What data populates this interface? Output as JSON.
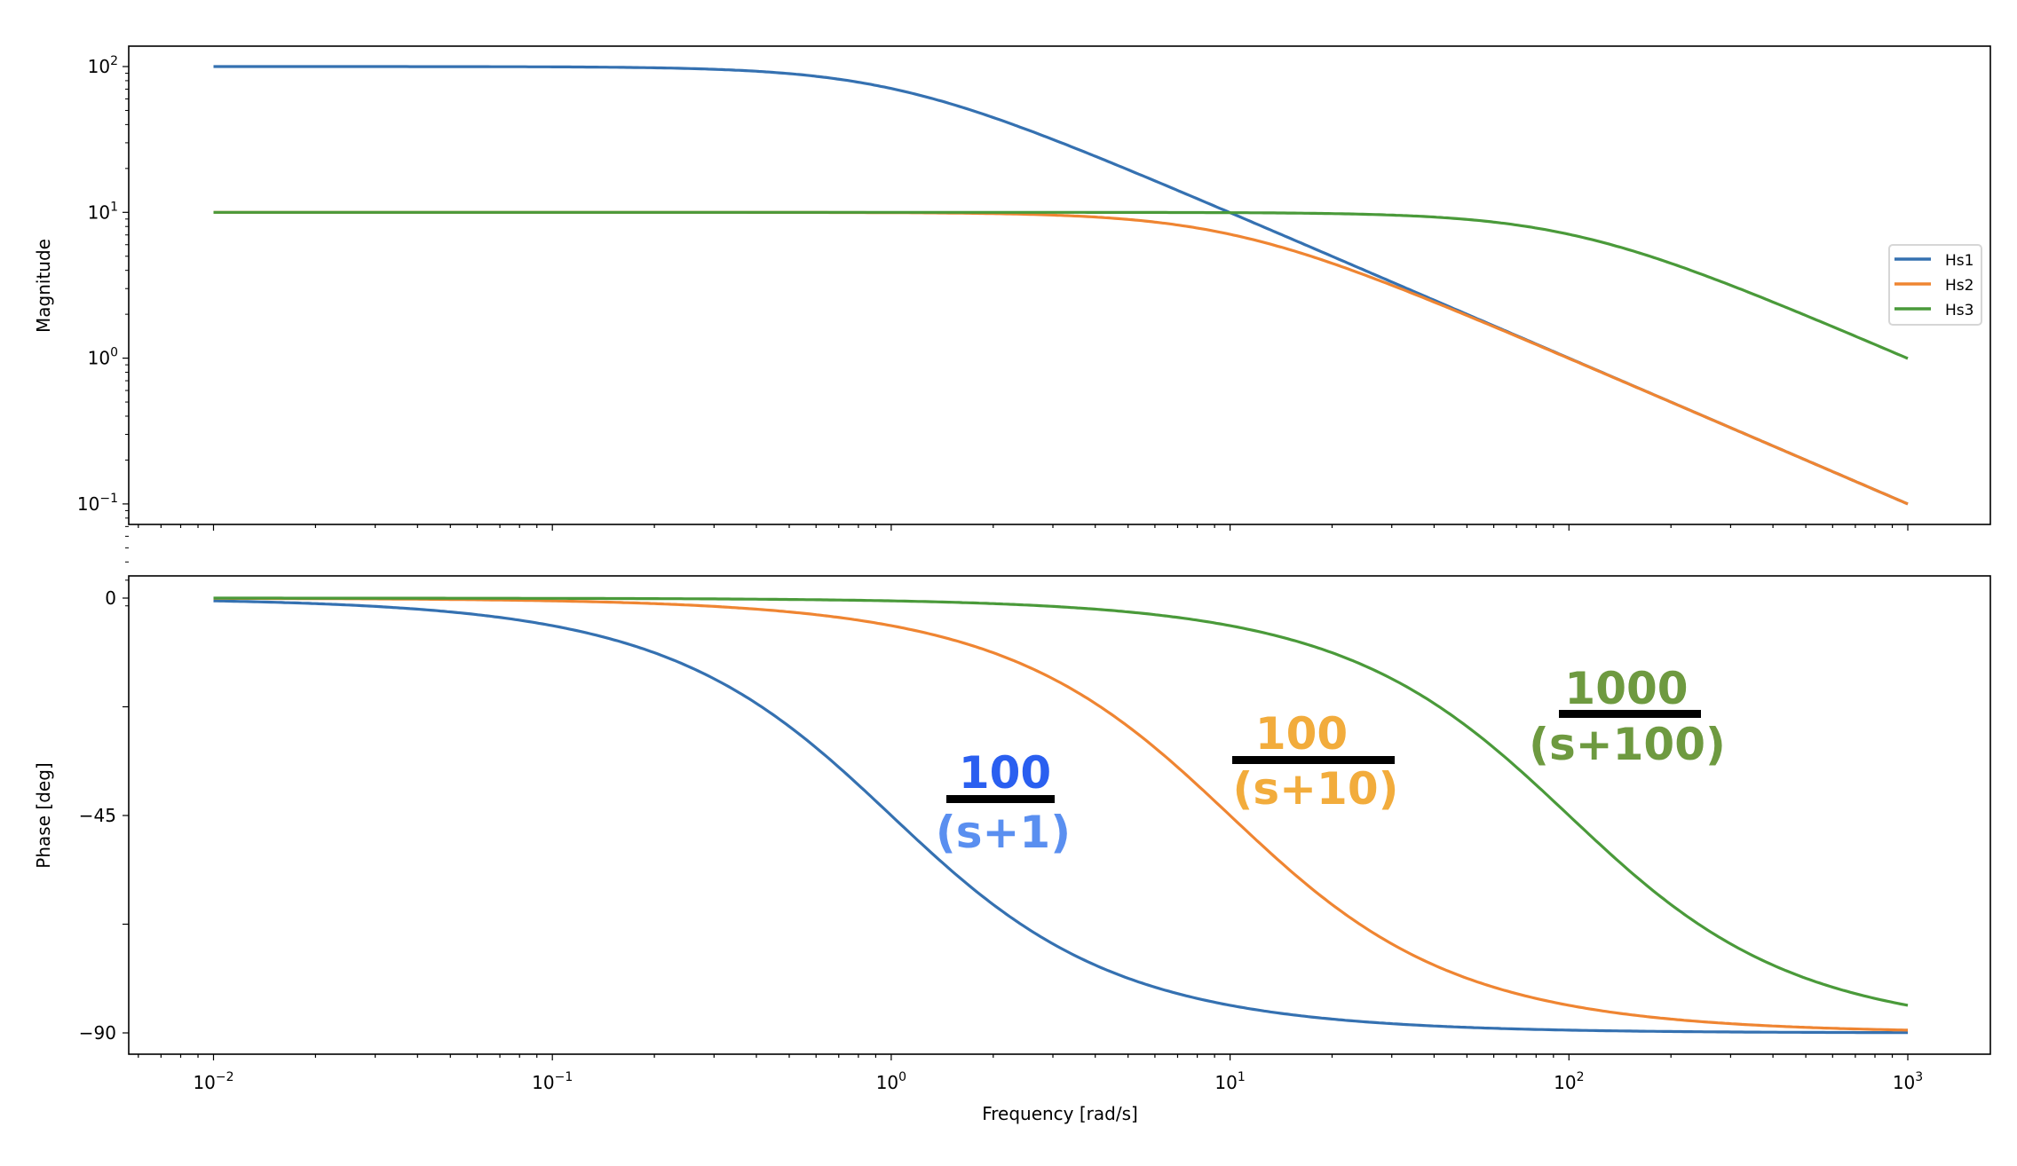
{
  "chart_data": [
    {
      "type": "line",
      "title": "",
      "xlabel": "",
      "ylabel": "Magnitude",
      "xscale": "log",
      "yscale": "log",
      "xlim": [
        0.01,
        1000
      ],
      "ylim": [
        0.1,
        100
      ],
      "xticks": [
        "10^-2",
        "10^-1",
        "10^0",
        "10^1",
        "10^2",
        "10^3"
      ],
      "yticks": [
        {
          "v": 100,
          "base": "10",
          "exp": "2"
        },
        {
          "v": 10,
          "base": "10",
          "exp": "1"
        },
        {
          "v": 1,
          "base": "10",
          "exp": "0"
        },
        {
          "v": 0.1,
          "base": "10",
          "exp": "−1"
        }
      ],
      "legend": {
        "placement": "center-right",
        "entries": [
          "Hs1",
          "Hs2",
          "Hs3"
        ]
      },
      "series": [
        {
          "name": "Hs1",
          "gain": 100,
          "pole": 1,
          "color": "#3571b1",
          "values_at_decades": {
            "0.01": 100,
            "0.1": 99.5,
            "1": 70.7,
            "10": 9.95,
            "100": 1.0,
            "1000": 0.1
          }
        },
        {
          "name": "Hs2",
          "gain": 100,
          "pole": 10,
          "color": "#ef8532",
          "values_at_decades": {
            "0.01": 10,
            "0.1": 10,
            "1": 9.95,
            "10": 7.07,
            "100": 0.995,
            "1000": 0.1
          }
        },
        {
          "name": "Hs3",
          "gain": 1000,
          "pole": 100,
          "color": "#4a9a3a",
          "values_at_decades": {
            "0.01": 10,
            "0.1": 10,
            "1": 10,
            "10": 9.95,
            "100": 7.07,
            "1000": 0.995
          }
        }
      ]
    },
    {
      "type": "line",
      "title": "",
      "xlabel": "Frequency [rad/s]",
      "ylabel": "Phase [deg]",
      "xscale": "log",
      "xlim": [
        0.01,
        1000
      ],
      "ylim": [
        -90,
        0
      ],
      "xticks": [
        {
          "base": "10",
          "exp": "−2"
        },
        {
          "base": "10",
          "exp": "−1"
        },
        {
          "base": "10",
          "exp": "0"
        },
        {
          "base": "10",
          "exp": "1"
        },
        {
          "base": "10",
          "exp": "2"
        },
        {
          "base": "10",
          "exp": "3"
        }
      ],
      "yticks": [
        "0",
        "−45",
        "−90"
      ],
      "series": [
        {
          "name": "Hs1",
          "pole": 1,
          "color": "#3571b1",
          "values_at_decades": {
            "0.01": -0.6,
            "0.1": -5.7,
            "1": -45,
            "10": -84.3,
            "100": -89.4,
            "1000": -89.9
          }
        },
        {
          "name": "Hs2",
          "pole": 10,
          "color": "#ef8532",
          "values_at_decades": {
            "0.01": -0.06,
            "0.1": -0.6,
            "1": -5.7,
            "10": -45,
            "100": -84.3,
            "1000": -89.4
          }
        },
        {
          "name": "Hs3",
          "pole": 100,
          "color": "#4a9a3a",
          "values_at_decades": {
            "0.01": 0,
            "0.1": -0.06,
            "1": -0.6,
            "10": -5.7,
            "100": -45,
            "1000": -84.3
          }
        }
      ],
      "annotations": [
        {
          "numerator": "100",
          "denominator": "(s+1)",
          "num_color": "#2a5ff0",
          "den_color": "#5a8ff0"
        },
        {
          "numerator": "100",
          "denominator": "(s+10)",
          "num_color": "#f2ac3c",
          "den_color": "#f2ac3c"
        },
        {
          "numerator": "1000",
          "denominator": "(s+100)",
          "num_color": "#6e9a40",
          "den_color": "#6e9a40"
        }
      ]
    }
  ]
}
